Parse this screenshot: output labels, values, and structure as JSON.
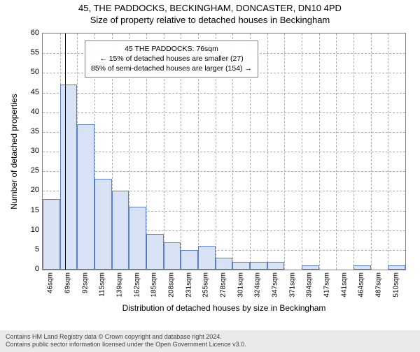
{
  "title_line1": "45, THE PADDOCKS, BECKINGHAM, DONCASTER, DN10 4PD",
  "title_line2": "Size of property relative to detached houses in Beckingham",
  "chart": {
    "type": "histogram",
    "ylabel": "Number of detached properties",
    "xlabel": "Distribution of detached houses by size in Beckingham",
    "ylim": [
      0,
      60
    ],
    "ytick_step": 5,
    "yticks": [
      0,
      5,
      10,
      15,
      20,
      25,
      30,
      35,
      40,
      45,
      50,
      55,
      60
    ],
    "xticks": [
      "46sqm",
      "69sqm",
      "92sqm",
      "115sqm",
      "139sqm",
      "162sqm",
      "185sqm",
      "208sqm",
      "231sqm",
      "255sqm",
      "278sqm",
      "301sqm",
      "324sqm",
      "347sqm",
      "371sqm",
      "394sqm",
      "417sqm",
      "441sqm",
      "464sqm",
      "487sqm",
      "510sqm"
    ],
    "values": [
      18,
      47,
      37,
      23,
      20,
      16,
      9,
      7,
      5,
      6,
      3,
      2,
      2,
      2,
      0,
      1,
      0,
      0,
      1,
      0,
      1
    ],
    "bar_fill": "#d7e2f4",
    "bar_border": "#5a7fc4",
    "background_color": "#ffffff",
    "grid_color": "#b0b0b0",
    "axis_color": "#808080",
    "reference_line": {
      "position_index": 1.3,
      "color": "#000000"
    },
    "annotation": {
      "lines": [
        "45 THE PADDOCKS: 76sqm",
        "← 15% of detached houses are smaller (27)",
        "85% of semi-detached houses are larger (154) →"
      ],
      "border_color": "#808080"
    }
  },
  "footer_line1": "Contains HM Land Registry data © Crown copyright and database right 2024.",
  "footer_line2": "Contains public sector information licensed under the Open Government Licence v3.0."
}
